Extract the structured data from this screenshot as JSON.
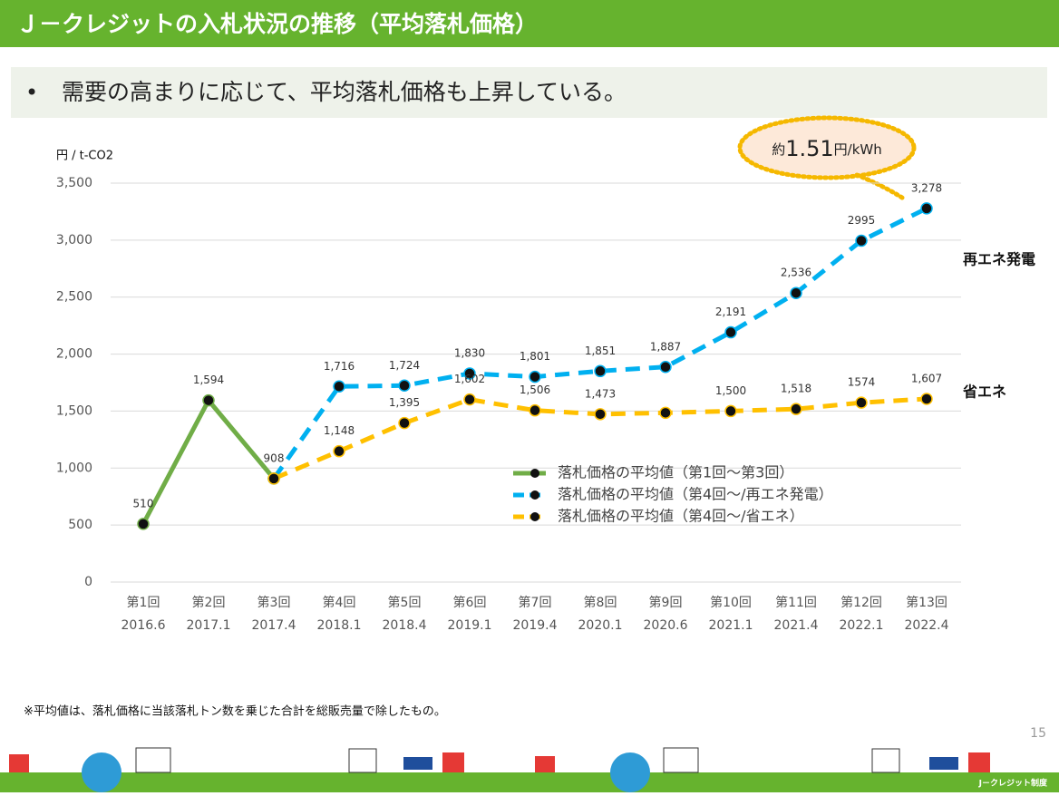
{
  "slide": {
    "title": "Ｊ－クレジットの入札状況の推移（平均落札価格）",
    "bullet": "需要の高まりに応じて、平均落札価格も上昇している。",
    "footnote": "※平均値は、落札価格に当該落札トン数を乗じた合計を総販売量で除したもの。",
    "page_number": "15",
    "brand": "J－クレジット制度"
  },
  "chart_data": {
    "type": "line",
    "y_label": "円 / t-CO2",
    "categories": [
      "第1回",
      "第2回",
      "第3回",
      "第4回",
      "第5回",
      "第6回",
      "第7回",
      "第8回",
      "第9回",
      "第10回",
      "第11回",
      "第12回",
      "第13回"
    ],
    "category_dates": [
      "2016.6",
      "2017.1",
      "2017.4",
      "2018.1",
      "2018.4",
      "2019.1",
      "2019.4",
      "2020.1",
      "2020.6",
      "2021.1",
      "2021.4",
      "2022.1",
      "2022.4"
    ],
    "ylim": [
      0,
      3500
    ],
    "yticks": [
      0,
      500,
      {
        "value": 1000,
        "label": "1,000"
      },
      {
        "value": 1500,
        "label": "1,500"
      },
      {
        "value": 2000,
        "label": "2,000"
      },
      {
        "value": 2500,
        "label": "2,500"
      },
      {
        "value": 3000,
        "label": "3,000"
      },
      {
        "value": 3500,
        "label": "3,500"
      }
    ],
    "grid": true,
    "series": [
      {
        "name": "落札価格の平均値（第1回～第3回）",
        "color": "#70ad47",
        "dashed": false,
        "values": [
          510,
          1594,
          908,
          null,
          null,
          null,
          null,
          null,
          null,
          null,
          null,
          null,
          null
        ],
        "value_labels": [
          "510",
          "1,594",
          "908",
          null,
          null,
          null,
          null,
          null,
          null,
          null,
          null,
          null,
          null
        ]
      },
      {
        "name": "落札価格の平均値（第4回～/再エネ発電）",
        "color": "#00b0f0",
        "dashed": true,
        "values": [
          null,
          null,
          908,
          1716,
          1724,
          1830,
          1801,
          1851,
          1887,
          2191,
          2536,
          2995,
          3278
        ],
        "value_labels": [
          null,
          null,
          null,
          "1,716",
          "1,724",
          "1,830",
          "1,801",
          "1,851",
          "1,887",
          "2,191",
          "2,536",
          "2995",
          "3,278"
        ]
      },
      {
        "name": "落札価格の平均値（第4回～/省エネ）",
        "color": "#ffc000",
        "dashed": true,
        "values": [
          null,
          null,
          908,
          1148,
          1395,
          1602,
          1506,
          1473,
          1485,
          1500,
          1518,
          1574,
          1607
        ],
        "value_labels": [
          null,
          null,
          null,
          "1,148",
          "1,395",
          "1,602",
          "1,506",
          "1,473",
          null,
          "1,500",
          "1,518",
          "1574",
          "1,607"
        ]
      }
    ],
    "series_side_labels": [
      "再エネ発電",
      "省エネ"
    ],
    "annotation": {
      "prefix": "約",
      "value": "1.51",
      "suffix": "円/kWh"
    }
  }
}
